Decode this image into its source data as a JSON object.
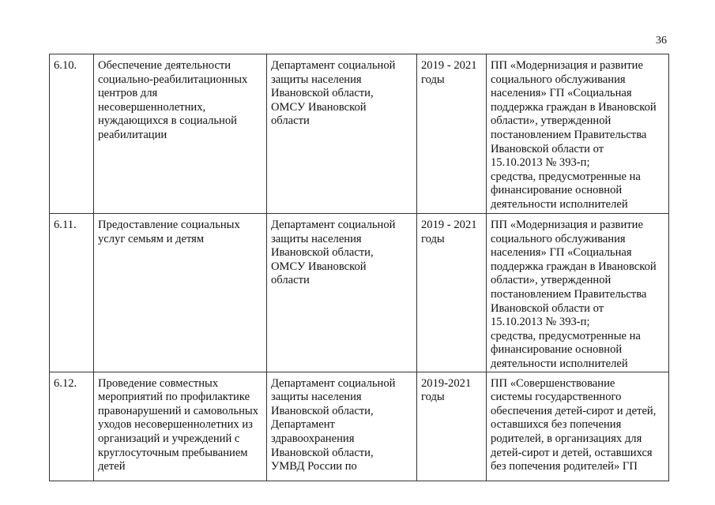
{
  "page_number": "36",
  "rows": [
    {
      "num": "6.10.",
      "measure": [
        "Обеспечение деятельности",
        "социально-реабилитационных",
        "центров для",
        "несовершеннолетних,",
        "нуждающихся в социальной",
        "реабилитации"
      ],
      "executor": [
        "Департамент социальной",
        "защиты населения",
        "Ивановской области,",
        "ОМСУ Ивановской",
        "области"
      ],
      "period": [
        "2019 - 2021",
        "годы"
      ],
      "funding": [
        "ПП «Модернизация и развитие",
        "социального обслуживания",
        "населения» ГП «Социальная",
        "поддержка граждан в Ивановской",
        "области», утвержденной",
        "постановлением Правительства",
        "Ивановской области от",
        "15.10.2013 № 393-п;",
        "средства, предусмотренные на",
        "финансирование основной",
        "деятельности исполнителей"
      ]
    },
    {
      "num": "6.11.",
      "measure": [
        "Предоставление социальных",
        "услуг семьям и детям"
      ],
      "executor": [
        "Департамент социальной",
        "защиты населения",
        "Ивановской области,",
        "ОМСУ Ивановской",
        "области"
      ],
      "period": [
        "2019 - 2021",
        "годы"
      ],
      "funding": [
        "ПП «Модернизация и развитие",
        "социального обслуживания",
        "населения» ГП «Социальная",
        "поддержка граждан в Ивановской",
        "области», утвержденной",
        "постановлением Правительства",
        "Ивановской области от",
        "15.10.2013 № 393-п;",
        "средства, предусмотренные на",
        "финансирование основной",
        "деятельности исполнителей"
      ]
    },
    {
      "num": "6.12.",
      "measure": [
        "Проведение совместных",
        "мероприятий по профилактике",
        "правонарушений и самовольных",
        "уходов несовершеннолетних из",
        "организаций и учреждений с",
        "круглосуточным пребыванием",
        "детей"
      ],
      "executor": [
        "Департамент социальной",
        "защиты населения",
        "Ивановской области,",
        "Департамент",
        "здравоохранения",
        "Ивановской области,",
        "УМВД России по"
      ],
      "period": [
        "2019-2021",
        "годы"
      ],
      "funding": [
        "ПП «Совершенствование",
        "системы государственного",
        "обеспечения детей-сирот и детей,",
        "оставшихся без попечения",
        "родителей, в организациях для",
        "детей-сирот и детей, оставшихся",
        "без попечения родителей» ГП"
      ]
    }
  ]
}
